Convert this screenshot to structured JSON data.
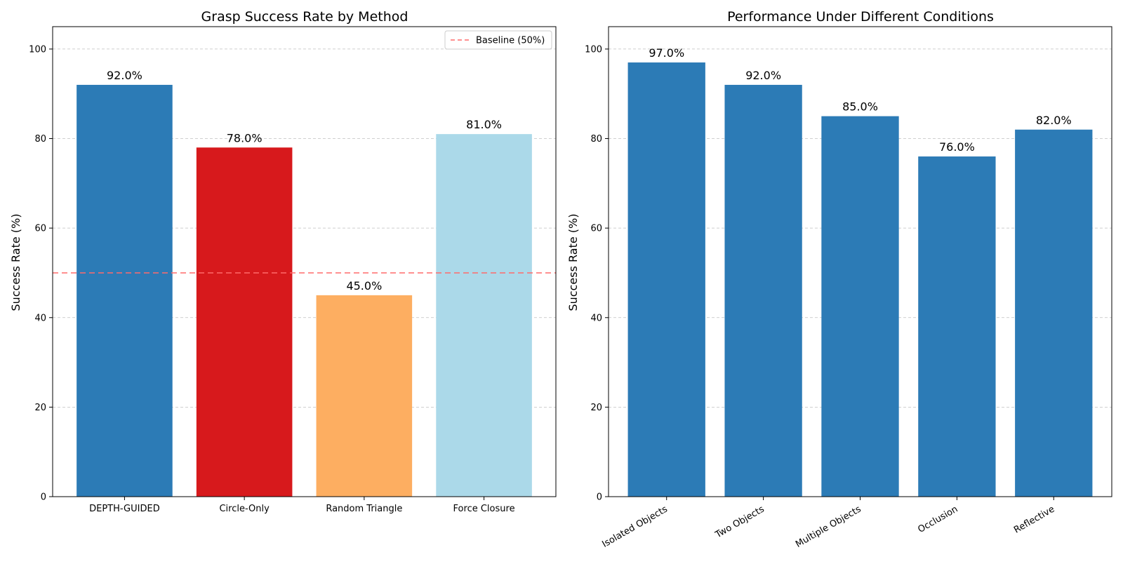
{
  "chart_data": [
    {
      "type": "bar",
      "title": "Grasp Success Rate by Method",
      "xlabel": "",
      "ylabel": "Success Rate (%)",
      "ylim": [
        0,
        105
      ],
      "yticks": [
        0,
        20,
        40,
        60,
        80,
        100
      ],
      "grid": "y-dashed",
      "categories": [
        "DEPTH-GUIDED",
        "Circle-Only",
        "Random Triangle",
        "Force Closure"
      ],
      "values": [
        92.0,
        78.0,
        45.0,
        81.0
      ],
      "value_labels": [
        "92.0%",
        "78.0%",
        "45.0%",
        "81.0%"
      ],
      "colors": [
        "#2c7bb6",
        "#d7191c",
        "#fdae61",
        "#abd9e9"
      ],
      "reference_line": {
        "label": "Baseline (50%)",
        "value": 50,
        "color": "#ff6b6b",
        "style": "dashed"
      },
      "legend_position": "top-right"
    },
    {
      "type": "bar",
      "title": "Performance Under Different Conditions",
      "xlabel": "",
      "ylabel": "Success Rate (%)",
      "ylim": [
        0,
        105
      ],
      "yticks": [
        0,
        20,
        40,
        60,
        80,
        100
      ],
      "grid": "y-dashed",
      "categories": [
        "Isolated Objects",
        "Two Objects",
        "Multiple Objects",
        "Occlusion",
        "Reflective"
      ],
      "values": [
        97.0,
        92.0,
        85.0,
        76.0,
        82.0
      ],
      "value_labels": [
        "97.0%",
        "92.0%",
        "85.0%",
        "76.0%",
        "82.0%"
      ],
      "colors": [
        "#2c7bb6",
        "#2c7bb6",
        "#2c7bb6",
        "#2c7bb6",
        "#2c7bb6"
      ],
      "tick_rotation": 30
    }
  ]
}
